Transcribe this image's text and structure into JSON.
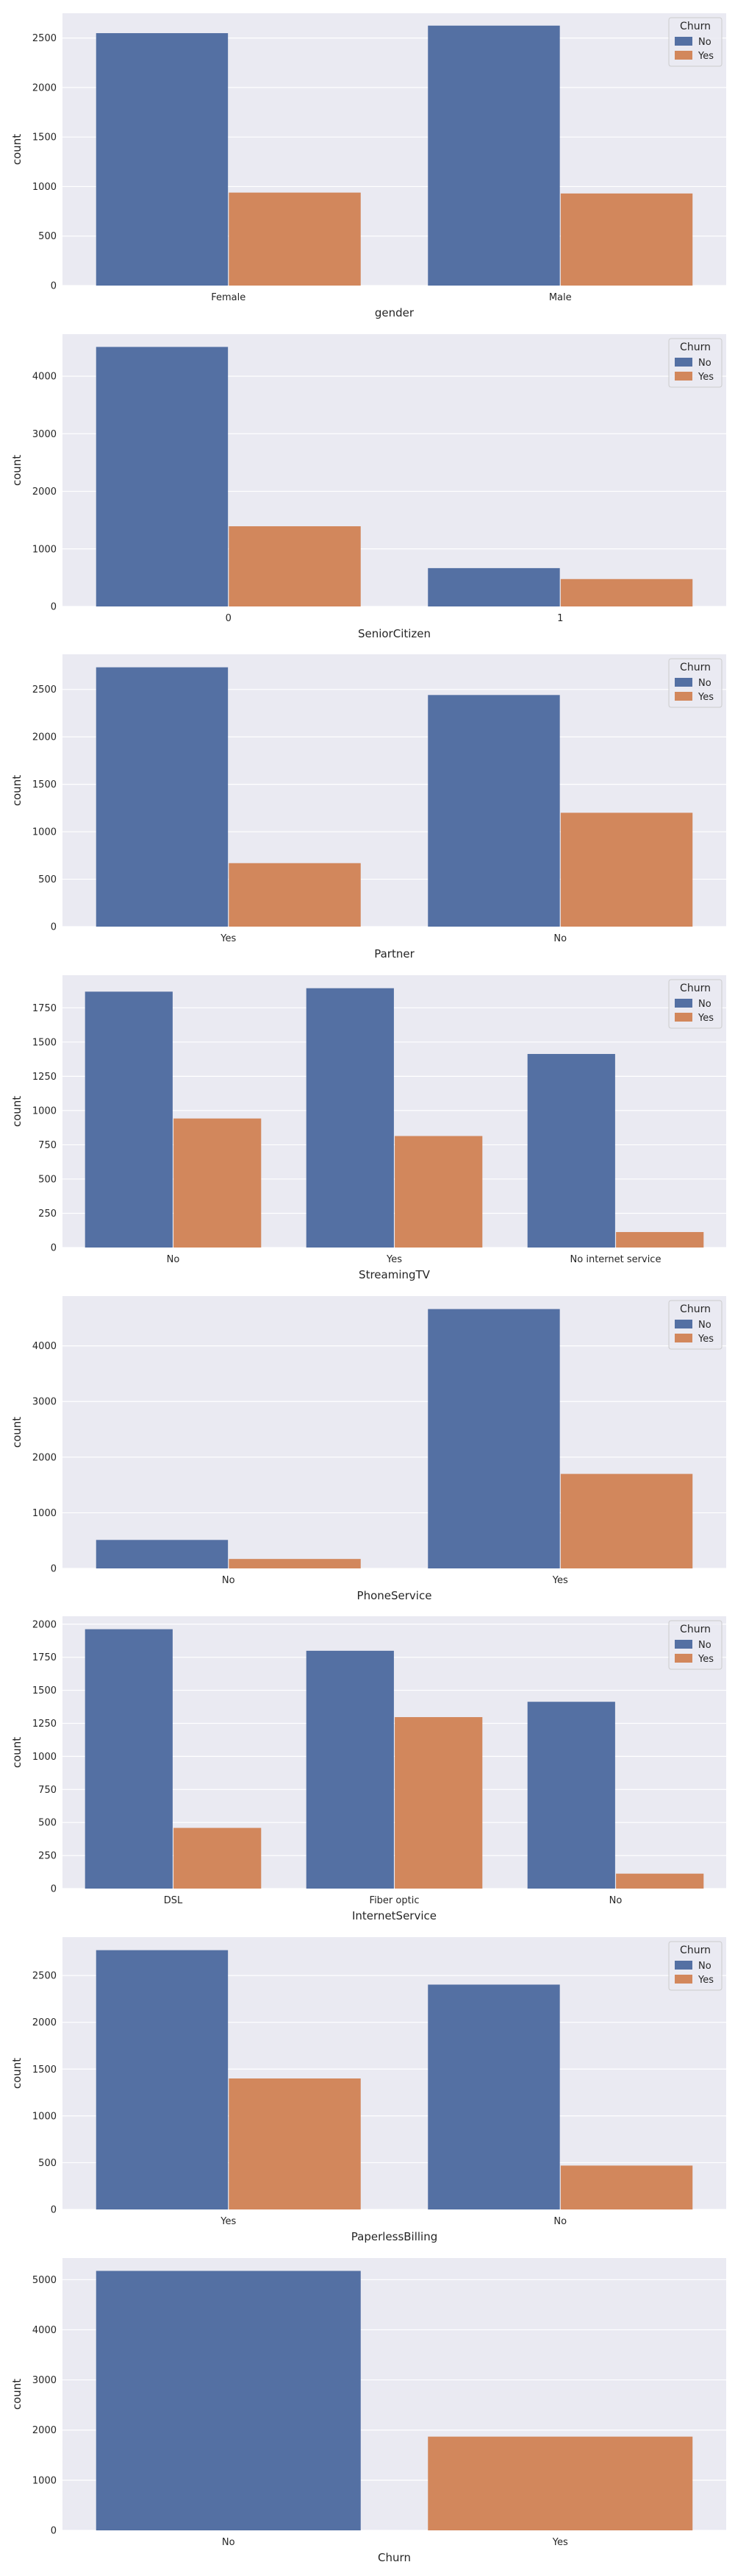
{
  "colors": {
    "No": "#5470a3",
    "Yes": "#d2875c",
    "plot_bg": "#eaeaf2",
    "grid": "#ffffff"
  },
  "chart_data": [
    {
      "type": "bar",
      "xlabel": "gender",
      "ylabel": "count",
      "categories": [
        "Female",
        "Male"
      ],
      "series": [
        {
          "name": "No",
          "values": [
            2549,
            2625
          ]
        },
        {
          "name": "Yes",
          "values": [
            939,
            930
          ]
        }
      ],
      "ylim": [
        0,
        2750
      ],
      "yticks": [
        0,
        500,
        1000,
        1500,
        2000,
        2500
      ],
      "legend": {
        "title": "Churn",
        "loc": "upper right"
      },
      "grid": true
    },
    {
      "type": "bar",
      "xlabel": "SeniorCitizen",
      "ylabel": "count",
      "categories": [
        "0",
        "1"
      ],
      "series": [
        {
          "name": "No",
          "values": [
            4508,
            666
          ]
        },
        {
          "name": "Yes",
          "values": [
            1393,
            476
          ]
        }
      ],
      "ylim": [
        0,
        4730
      ],
      "yticks": [
        0,
        1000,
        2000,
        3000,
        4000
      ],
      "legend": {
        "title": "Churn",
        "loc": "upper right"
      },
      "grid": true
    },
    {
      "type": "bar",
      "xlabel": "Partner",
      "ylabel": "count",
      "categories": [
        "Yes",
        "No"
      ],
      "series": [
        {
          "name": "No",
          "values": [
            2733,
            2441
          ]
        },
        {
          "name": "Yes",
          "values": [
            669,
            1200
          ]
        }
      ],
      "ylim": [
        0,
        2870
      ],
      "yticks": [
        0,
        500,
        1000,
        1500,
        2000,
        2500
      ],
      "legend": {
        "title": "Churn",
        "loc": "upper right"
      },
      "grid": true
    },
    {
      "type": "bar",
      "xlabel": "StreamingTV",
      "ylabel": "count",
      "categories": [
        "No",
        "Yes",
        "No internet service"
      ],
      "series": [
        {
          "name": "No",
          "values": [
            1868,
            1893,
            1413
          ]
        },
        {
          "name": "Yes",
          "values": [
            942,
            814,
            113
          ]
        }
      ],
      "ylim": [
        0,
        1988
      ],
      "yticks": [
        0,
        250,
        500,
        750,
        1000,
        1250,
        1500,
        1750
      ],
      "legend": {
        "title": "Churn",
        "loc": "upper right"
      },
      "grid": true
    },
    {
      "type": "bar",
      "xlabel": "PhoneService",
      "ylabel": "count",
      "categories": [
        "No",
        "Yes"
      ],
      "series": [
        {
          "name": "No",
          "values": [
            512,
            4662
          ]
        },
        {
          "name": "Yes",
          "values": [
            170,
            1699
          ]
        }
      ],
      "ylim": [
        0,
        4895
      ],
      "yticks": [
        0,
        1000,
        2000,
        3000,
        4000
      ],
      "legend": {
        "title": "Churn",
        "loc": "upper right"
      },
      "grid": true
    },
    {
      "type": "bar",
      "xlabel": "InternetService",
      "ylabel": "count",
      "categories": [
        "DSL",
        "Fiber optic",
        "No"
      ],
      "series": [
        {
          "name": "No",
          "values": [
            1962,
            1799,
            1413
          ]
        },
        {
          "name": "Yes",
          "values": [
            459,
            1297,
            113
          ]
        }
      ],
      "ylim": [
        0,
        2060
      ],
      "yticks": [
        0,
        250,
        500,
        750,
        1000,
        1250,
        1500,
        1750,
        2000
      ],
      "legend": {
        "title": "Churn",
        "loc": "upper right"
      },
      "grid": true
    },
    {
      "type": "bar",
      "xlabel": "PaperlessBilling",
      "ylabel": "count",
      "categories": [
        "Yes",
        "No"
      ],
      "series": [
        {
          "name": "No",
          "values": [
            2771,
            2403
          ]
        },
        {
          "name": "Yes",
          "values": [
            1400,
            469
          ]
        }
      ],
      "ylim": [
        0,
        2910
      ],
      "yticks": [
        0,
        500,
        1000,
        1500,
        2000,
        2500
      ],
      "legend": {
        "title": "Churn",
        "loc": "upper right"
      },
      "grid": true
    },
    {
      "type": "bar",
      "xlabel": "Churn",
      "ylabel": "count",
      "categories": [
        "No",
        "Yes"
      ],
      "series": [
        {
          "name": "",
          "values": [
            5174,
            1869
          ]
        }
      ],
      "ylim": [
        0,
        5430
      ],
      "yticks": [
        0,
        1000,
        2000,
        3000,
        4000,
        5000
      ],
      "bar_colors": [
        "#5470a3",
        "#d2875c"
      ],
      "grid": true
    }
  ]
}
